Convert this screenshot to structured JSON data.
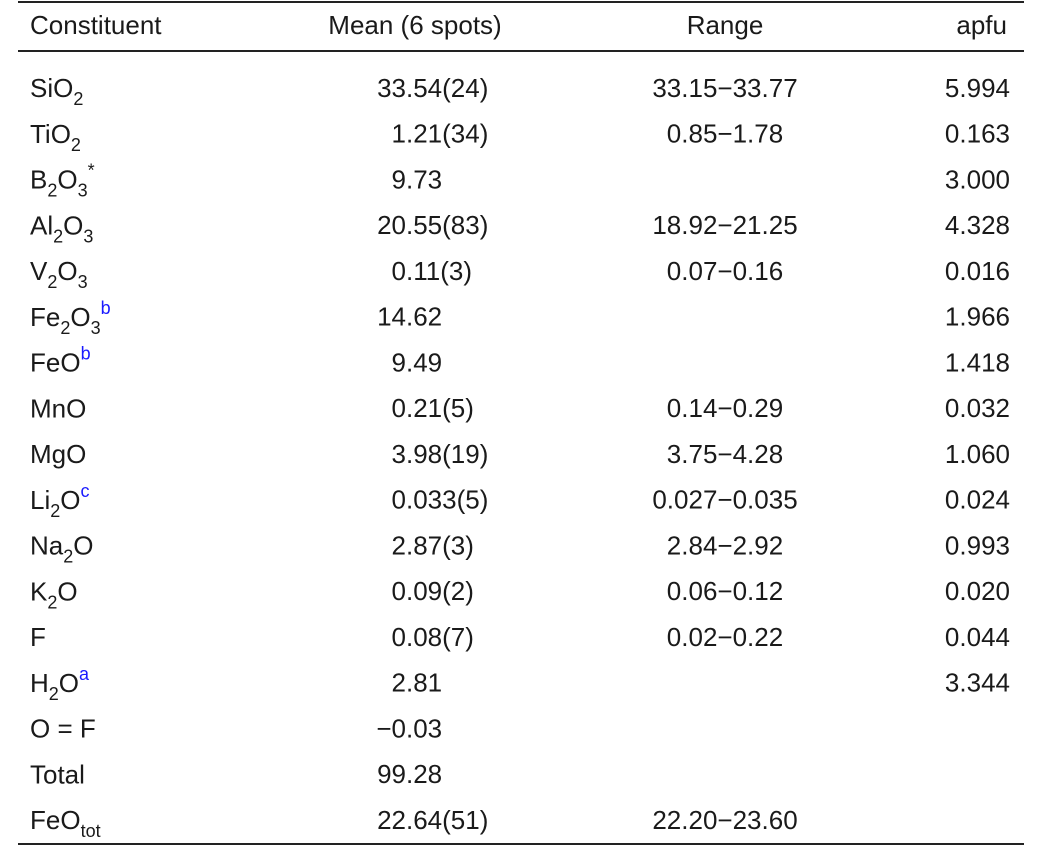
{
  "table": {
    "header": {
      "constituent": "Constituent",
      "mean": "Mean (6 spots)",
      "range": "Range",
      "apfu": "apfu"
    },
    "rows": [
      {
        "constituent": [
          "SiO",
          {
            "sub": "2"
          }
        ],
        "mean": "33.54(24)",
        "range": "33.15−33.77",
        "apfu": "5.994"
      },
      {
        "constituent": [
          "TiO",
          {
            "sub": "2"
          }
        ],
        "mean": "1.21(34)",
        "range": "0.85−1.78",
        "apfu": "0.163"
      },
      {
        "constituent": [
          "B",
          {
            "sub": "2"
          },
          "O",
          {
            "sub": "3"
          },
          {
            "sup": "*"
          }
        ],
        "mean": "9.73",
        "apfu": "3.000"
      },
      {
        "constituent": [
          "Al",
          {
            "sub": "2"
          },
          "O",
          {
            "sub": "3"
          }
        ],
        "mean": "20.55(83)",
        "range": "18.92−21.25",
        "apfu": "4.328"
      },
      {
        "constituent": [
          "V",
          {
            "sub": "2"
          },
          "O",
          {
            "sub": "3"
          }
        ],
        "mean": "0.11(3)",
        "range": "0.07−0.16",
        "apfu": "0.016"
      },
      {
        "constituent": [
          "Fe",
          {
            "sub": "2"
          },
          "O",
          {
            "sub": "3"
          },
          {
            "note": "b"
          }
        ],
        "mean": "14.62",
        "apfu": "1.966"
      },
      {
        "constituent": [
          "FeO",
          {
            "note": "b"
          }
        ],
        "mean": "9.49",
        "apfu": "1.418"
      },
      {
        "constituent": [
          "MnO"
        ],
        "mean": "0.21(5)",
        "range": "0.14−0.29",
        "apfu": "0.032"
      },
      {
        "constituent": [
          "MgO"
        ],
        "mean": "3.98(19)",
        "range": "3.75−4.28",
        "apfu": "1.060"
      },
      {
        "constituent": [
          "Li",
          {
            "sub": "2"
          },
          "O",
          {
            "note": "c"
          }
        ],
        "mean": "0.033(5)",
        "range": "0.027−0.035",
        "apfu": "0.024"
      },
      {
        "constituent": [
          "Na",
          {
            "sub": "2"
          },
          "O"
        ],
        "mean": "2.87(3)",
        "range": "2.84−2.92",
        "apfu": "0.993"
      },
      {
        "constituent": [
          "K",
          {
            "sub": "2"
          },
          "O"
        ],
        "mean": "0.09(2)",
        "range": "0.06−0.12",
        "apfu": "0.020"
      },
      {
        "constituent": [
          "F"
        ],
        "mean": "0.08(7)",
        "range": "0.02−0.22",
        "apfu": "0.044"
      },
      {
        "constituent": [
          "H",
          {
            "sub": "2"
          },
          "O",
          {
            "note": "a"
          }
        ],
        "mean": "2.81",
        "apfu": "3.344"
      },
      {
        "constituent": [
          "O = F"
        ],
        "mean": "−0.03"
      },
      {
        "constituent": [
          "Total"
        ],
        "mean": "99.28"
      },
      {
        "constituent": [
          "FeO",
          {
            "sub": "tot"
          }
        ],
        "mean": "22.64(51)",
        "range": "22.20−23.60"
      }
    ]
  }
}
